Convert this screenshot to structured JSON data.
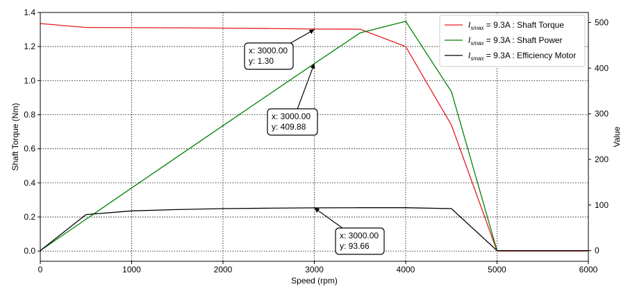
{
  "chart_data": {
    "type": "line",
    "xlabel": "Speed  (rpm)",
    "ylabel_left": "Shaft Torque  (Nm)",
    "ylabel_right": "Value",
    "xlim": [
      0,
      6000
    ],
    "ylim_left": [
      -0.06,
      1.4
    ],
    "ylim_right": [
      -23.4,
      522
    ],
    "x_ticks": [
      0,
      1000,
      2000,
      3000,
      4000,
      5000,
      6000
    ],
    "y_left_ticks": [
      "0.0",
      "0.2",
      "0.4",
      "0.6",
      "0.8",
      "1.0",
      "1.2",
      "1.4"
    ],
    "y_right_ticks": [
      "0",
      "100",
      "200",
      "300",
      "400",
      "500"
    ],
    "grid": true,
    "legend_position": "top-right",
    "series": [
      {
        "name": "Shaft Torque",
        "legend_prefix": "I",
        "legend_subscript": "smax",
        "legend_suffix": " = 9.3A : Shaft Torque",
        "color": "#e31a1c",
        "axis": "left",
        "x": [
          0,
          500,
          1000,
          1500,
          2000,
          2500,
          3000,
          3500,
          4000,
          4500,
          5000,
          5500,
          6000
        ],
        "values": [
          1.335,
          1.312,
          1.311,
          1.31,
          1.308,
          1.306,
          1.303,
          1.302,
          1.2,
          0.74,
          0.0,
          0.0,
          0.0
        ]
      },
      {
        "name": "Shaft Power",
        "legend_prefix": "I",
        "legend_subscript": "smax",
        "legend_suffix": " = 9.3A : Shaft Power",
        "color": "#008000",
        "axis": "right",
        "x": [
          0,
          500,
          1000,
          1500,
          2000,
          2500,
          3000,
          3500,
          4000,
          4500,
          5000,
          5500,
          6000
        ],
        "values": [
          0,
          68.7,
          137.3,
          205.7,
          273.9,
          341.9,
          409.88,
          477.2,
          502.6,
          348.7,
          0,
          0,
          0
        ]
      },
      {
        "name": "Efficiency Motor",
        "legend_prefix": "I",
        "legend_subscript": "smax",
        "legend_suffix": " = 9.3A : Efficiency Motor",
        "color": "#000000",
        "axis": "right",
        "x": [
          0,
          500,
          1000,
          1500,
          2000,
          2500,
          3000,
          3500,
          4000,
          4500,
          5000,
          5500,
          6000
        ],
        "values": [
          0,
          79,
          87,
          90,
          92,
          93,
          93.66,
          94,
          94,
          92,
          0,
          0,
          0
        ]
      }
    ],
    "annotations": [
      {
        "series": 0,
        "x": 3000,
        "y": 1.3,
        "line1": "x: 3000.00",
        "line2": "y: 1.30"
      },
      {
        "series": 1,
        "x": 3000,
        "y": 409.88,
        "line1": "x: 3000.00",
        "line2": "y: 409.88"
      },
      {
        "series": 2,
        "x": 3000,
        "y": 93.66,
        "line1": "x: 3000.00",
        "line2": "y: 93.66"
      }
    ]
  }
}
